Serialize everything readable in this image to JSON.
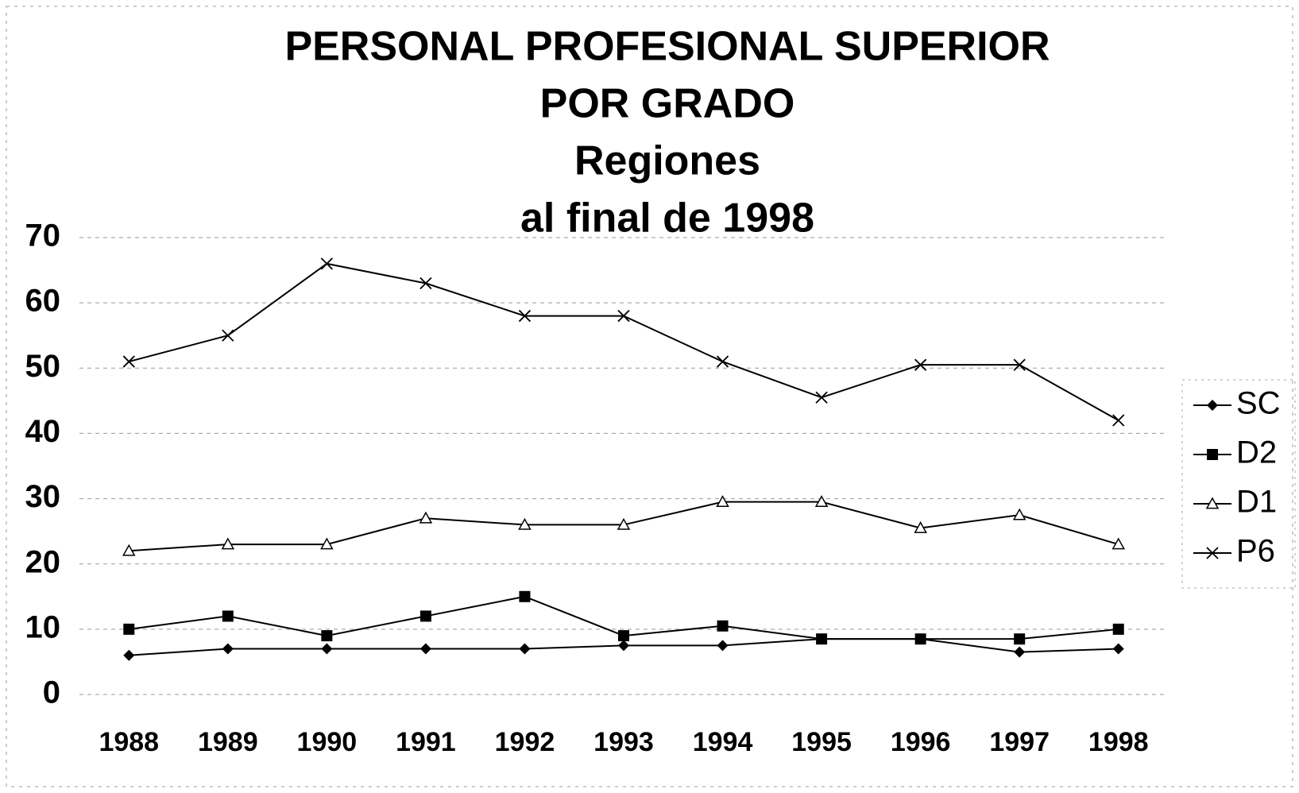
{
  "chart_data": {
    "type": "line",
    "title": [
      "PERSONAL PROFESIONAL SUPERIOR",
      "POR GRADO",
      "Regiones",
      "al final de 1998"
    ],
    "categories": [
      "1988",
      "1989",
      "1990",
      "1991",
      "1992",
      "1993",
      "1994",
      "1995",
      "1996",
      "1997",
      "1998"
    ],
    "series": [
      {
        "name": "SC",
        "color": "#000000",
        "marker": "diamond",
        "values": [
          6,
          7,
          7,
          7,
          7,
          7.5,
          7.5,
          8.5,
          8.5,
          6.5,
          7
        ]
      },
      {
        "name": "D2",
        "color": "#000000",
        "marker": "square",
        "values": [
          10,
          12,
          9,
          12,
          15,
          9,
          10.5,
          8.5,
          8.5,
          8.5,
          10
        ]
      },
      {
        "name": "D1",
        "color": "#000000",
        "marker": "triangle",
        "values": [
          22,
          23,
          23,
          27,
          26,
          26,
          29.5,
          29.5,
          25.5,
          27.5,
          23
        ]
      },
      {
        "name": "P6",
        "color": "#000000",
        "marker": "x",
        "values": [
          51,
          55,
          66,
          63,
          58,
          58,
          51,
          45.5,
          50.5,
          50.5,
          42
        ]
      }
    ],
    "ylim": [
      0,
      70
    ],
    "yticks": [
      0,
      10,
      20,
      30,
      40,
      50,
      60,
      70
    ],
    "grid": true,
    "legend": "right"
  }
}
